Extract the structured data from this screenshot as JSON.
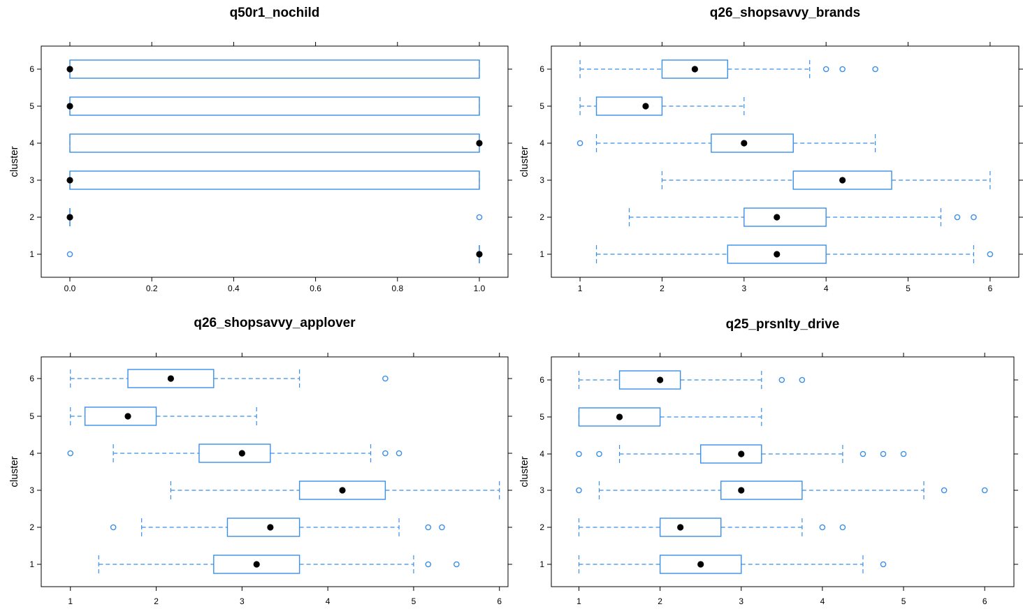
{
  "chart_data": [
    {
      "type": "boxplot",
      "title": "q50r1_nochild",
      "ylabel": "cluster",
      "xlabel": "",
      "xlim": [
        -0.07,
        1.07
      ],
      "xticks": [
        0.0,
        0.2,
        0.4,
        0.6,
        0.8,
        1.0
      ],
      "xtick_labels": [
        "0.0",
        "0.2",
        "0.4",
        "0.6",
        "0.8",
        "1.0"
      ],
      "categories": [
        "1",
        "2",
        "3",
        "4",
        "5",
        "6"
      ],
      "boxes": [
        {
          "cluster": "1",
          "whisker_low": 1,
          "q1": 1,
          "median": 1,
          "q3": 1,
          "whisker_high": 1,
          "outliers": [
            0
          ]
        },
        {
          "cluster": "2",
          "whisker_low": 0,
          "q1": 0,
          "median": 0,
          "q3": 0,
          "whisker_high": 0,
          "outliers": [
            1
          ]
        },
        {
          "cluster": "3",
          "whisker_low": 0,
          "q1": 0,
          "median": 0,
          "q3": 1,
          "whisker_high": 1,
          "outliers": []
        },
        {
          "cluster": "4",
          "whisker_low": 0,
          "q1": 0,
          "median": 1,
          "q3": 1,
          "whisker_high": 1,
          "outliers": []
        },
        {
          "cluster": "5",
          "whisker_low": 0,
          "q1": 0,
          "median": 0,
          "q3": 1,
          "whisker_high": 1,
          "outliers": []
        },
        {
          "cluster": "6",
          "whisker_low": 0,
          "q1": 0,
          "median": 0,
          "q3": 1,
          "whisker_high": 1,
          "outliers": []
        }
      ]
    },
    {
      "type": "boxplot",
      "title": "q26_shopsavvy_brands",
      "ylabel": "cluster",
      "xlabel": "",
      "xlim": [
        0.65,
        6.35
      ],
      "xticks": [
        1,
        2,
        3,
        4,
        5,
        6
      ],
      "xtick_labels": [
        "1",
        "2",
        "3",
        "4",
        "5",
        "6"
      ],
      "categories": [
        "1",
        "2",
        "3",
        "4",
        "5",
        "6"
      ],
      "boxes": [
        {
          "cluster": "1",
          "whisker_low": 1.2,
          "q1": 2.8,
          "median": 3.4,
          "q3": 4.0,
          "whisker_high": 5.8,
          "outliers": [
            6.0
          ]
        },
        {
          "cluster": "2",
          "whisker_low": 1.6,
          "q1": 3.0,
          "median": 3.4,
          "q3": 4.0,
          "whisker_high": 5.4,
          "outliers": [
            5.6,
            5.8
          ]
        },
        {
          "cluster": "3",
          "whisker_low": 2.0,
          "q1": 3.6,
          "median": 4.2,
          "q3": 4.8,
          "whisker_high": 6.0,
          "outliers": []
        },
        {
          "cluster": "4",
          "whisker_low": 1.2,
          "q1": 2.6,
          "median": 3.0,
          "q3": 3.6,
          "whisker_high": 4.6,
          "outliers": [
            1.0
          ]
        },
        {
          "cluster": "5",
          "whisker_low": 1.0,
          "q1": 1.2,
          "median": 1.8,
          "q3": 2.0,
          "whisker_high": 3.0,
          "outliers": []
        },
        {
          "cluster": "6",
          "whisker_low": 1.0,
          "q1": 2.0,
          "median": 2.4,
          "q3": 2.8,
          "whisker_high": 3.8,
          "outliers": [
            4.0,
            4.2,
            4.6
          ]
        }
      ]
    },
    {
      "type": "boxplot",
      "title": "q26_shopsavvy_applover",
      "ylabel": "cluster",
      "xlabel": "",
      "xlim": [
        0.66,
        6.1
      ],
      "xticks": [
        1,
        2,
        3,
        4,
        5,
        6
      ],
      "xtick_labels": [
        "1",
        "2",
        "3",
        "4",
        "5",
        "6"
      ],
      "categories": [
        "1",
        "2",
        "3",
        "4",
        "5",
        "6"
      ],
      "boxes": [
        {
          "cluster": "1",
          "whisker_low": 1.33,
          "q1": 2.67,
          "median": 3.17,
          "q3": 3.67,
          "whisker_high": 5.0,
          "outliers": [
            5.17,
            5.5
          ]
        },
        {
          "cluster": "2",
          "whisker_low": 1.83,
          "q1": 2.83,
          "median": 3.33,
          "q3": 3.67,
          "whisker_high": 4.83,
          "outliers": [
            1.5,
            5.17,
            5.33
          ]
        },
        {
          "cluster": "3",
          "whisker_low": 2.17,
          "q1": 3.67,
          "median": 4.17,
          "q3": 4.67,
          "whisker_high": 6.0,
          "outliers": []
        },
        {
          "cluster": "4",
          "whisker_low": 1.5,
          "q1": 2.5,
          "median": 3.0,
          "q3": 3.33,
          "whisker_high": 4.5,
          "outliers": [
            1.0,
            4.67,
            4.83
          ]
        },
        {
          "cluster": "5",
          "whisker_low": 1.0,
          "q1": 1.17,
          "median": 1.67,
          "q3": 2.0,
          "whisker_high": 3.17,
          "outliers": []
        },
        {
          "cluster": "6",
          "whisker_low": 1.0,
          "q1": 1.67,
          "median": 2.17,
          "q3": 2.67,
          "whisker_high": 3.67,
          "outliers": [
            4.67
          ]
        }
      ]
    },
    {
      "type": "boxplot",
      "title": "q25_prsnlty_drive",
      "ylabel": "cluster",
      "xlabel": "",
      "xlim": [
        0.66,
        6.36
      ],
      "xticks": [
        1,
        2,
        3,
        4,
        5,
        6
      ],
      "xtick_labels": [
        "1",
        "2",
        "3",
        "4",
        "5",
        "6"
      ],
      "categories": [
        "1",
        "2",
        "3",
        "4",
        "5",
        "6"
      ],
      "boxes": [
        {
          "cluster": "1",
          "whisker_low": 1.0,
          "q1": 2.0,
          "median": 2.5,
          "q3": 3.0,
          "whisker_high": 4.5,
          "outliers": [
            4.75
          ]
        },
        {
          "cluster": "2",
          "whisker_low": 1.0,
          "q1": 2.0,
          "median": 2.25,
          "q3": 2.75,
          "whisker_high": 3.75,
          "outliers": [
            4.0,
            4.25
          ]
        },
        {
          "cluster": "3",
          "whisker_low": 1.25,
          "q1": 2.75,
          "median": 3.0,
          "q3": 3.75,
          "whisker_high": 5.25,
          "outliers": [
            1.0,
            5.5,
            6.0
          ]
        },
        {
          "cluster": "4",
          "whisker_low": 1.5,
          "q1": 2.5,
          "median": 3.0,
          "q3": 3.25,
          "whisker_high": 4.25,
          "outliers": [
            1.0,
            1.25,
            4.5,
            4.75,
            5.0
          ]
        },
        {
          "cluster": "5",
          "whisker_low": 1.0,
          "q1": 1.0,
          "median": 1.5,
          "q3": 2.0,
          "whisker_high": 3.25,
          "outliers": []
        },
        {
          "cluster": "6",
          "whisker_low": 1.0,
          "q1": 1.5,
          "median": 2.0,
          "q3": 2.25,
          "whisker_high": 3.25,
          "outliers": [
            3.5,
            3.75
          ]
        }
      ]
    }
  ],
  "colors": {
    "box": "#3a8fe8",
    "median": "#000000",
    "frame": "#000000",
    "background": "#ffffff"
  }
}
